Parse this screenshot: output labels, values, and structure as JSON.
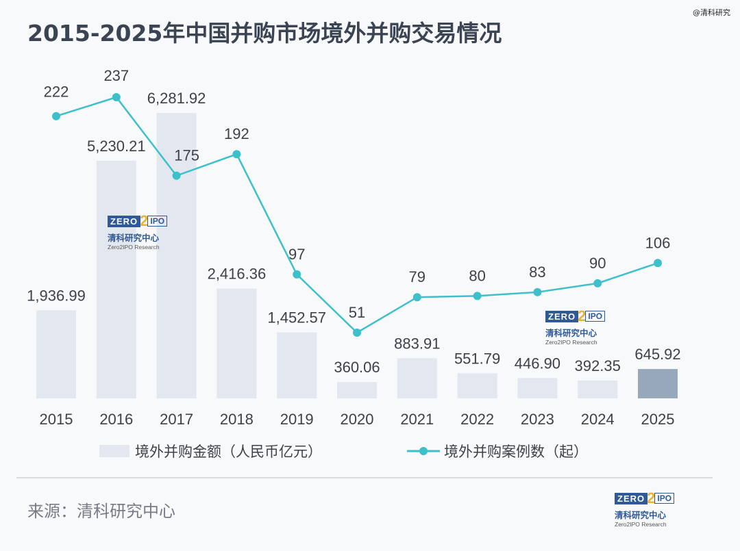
{
  "page": {
    "title": "2015-2025年中国并购市场境外并购交易情况",
    "watermark": "@清科研究",
    "source": "来源：清科研究中心",
    "logo": {
      "mark_left": "ZERO",
      "mark_mid": "2",
      "mark_right": "IPO",
      "cn": "清科研究中心",
      "en": "Zero2IPO Research"
    }
  },
  "colors": {
    "bar": "#e3e7ef",
    "bar_highlight": "#98a8bb",
    "line": "#3cc0c9",
    "text": "#3d4148",
    "title": "#3b4452"
  },
  "chart_data": {
    "type": "bar+line",
    "title": "2015-2025年中国并购市场境外并购交易情况",
    "categories": [
      "2015",
      "2016",
      "2017",
      "2018",
      "2019",
      "2020",
      "2021",
      "2022",
      "2023",
      "2024",
      "2025"
    ],
    "series": [
      {
        "name": "境外并购金额（人民币亿元）",
        "type": "bar",
        "values": [
          1936.99,
          5230.21,
          6281.92,
          2416.36,
          1452.57,
          360.06,
          883.91,
          551.79,
          446.9,
          392.35,
          645.92
        ],
        "labels": [
          "1,936.99",
          "5,230.21",
          "6,281.92",
          "2,416.36",
          "1,452.57",
          "360.06",
          "883.91",
          "551.79",
          "446.90",
          "392.35",
          "645.92"
        ],
        "highlight_index": 10
      },
      {
        "name": "境外并购案例数（起）",
        "type": "line",
        "values": [
          222,
          237,
          175,
          192,
          97,
          51,
          79,
          80,
          83,
          90,
          106
        ],
        "labels": [
          "222",
          "237",
          "175",
          "192",
          "97",
          "51",
          "79",
          "80",
          "83",
          "90",
          "106"
        ]
      }
    ],
    "legend_position": "bottom",
    "grid": false
  }
}
